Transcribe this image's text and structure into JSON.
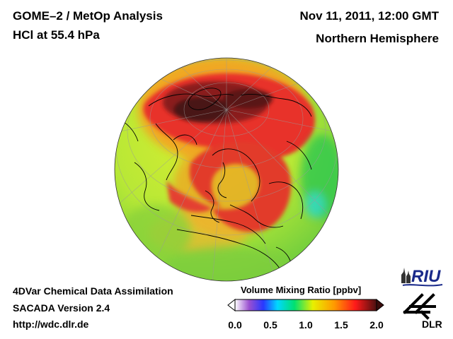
{
  "header": {
    "title_line1": "GOME–2 / MetOp Analysis",
    "title_line2": "HCl at 55.4 hPa",
    "date": "Nov 11, 2011, 12:00 GMT",
    "region": "Northern Hemisphere"
  },
  "footer": {
    "line1": "4DVar Chemical Data Assimilation",
    "line2": "SACADA Version 2.4",
    "line3": "http://wdc.dlr.de"
  },
  "colorbar": {
    "title": "Volume Mixing Ratio [ppbv]",
    "ticks": [
      "0.0",
      "0.5",
      "1.0",
      "1.5",
      "2.0"
    ],
    "stops": [
      "#ffffff",
      "#7a3cc8",
      "#1e3cff",
      "#00d8ff",
      "#00e070",
      "#e8f000",
      "#ff9a00",
      "#ff1a1a",
      "#5a1010"
    ]
  },
  "logos": {
    "riu": "RIU",
    "dlr": "DLR"
  },
  "map": {
    "projection": "orthographic",
    "hemisphere": "north",
    "background_color": "#8cd63c",
    "high_color": "#e82a2a",
    "max_color": "#4a1818"
  }
}
